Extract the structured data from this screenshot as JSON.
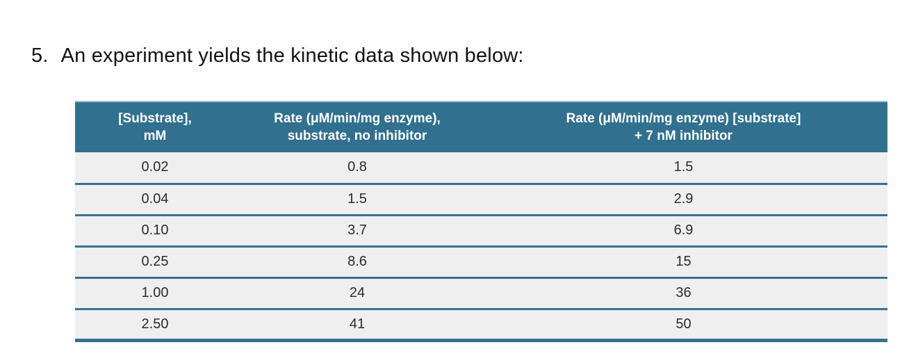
{
  "question": {
    "number": "5.",
    "text": "An experiment yields the kinetic data shown below:"
  },
  "table": {
    "columns": [
      {
        "label_line1": "[Substrate],",
        "label_line2": "mM"
      },
      {
        "label_line1": "Rate (μM/min/mg enzyme),",
        "label_line2": "substrate, no inhibitor"
      },
      {
        "label_line1": "Rate (μM/min/mg enzyme) [substrate]",
        "label_line2": "+ 7 nM inhibitor"
      }
    ],
    "rows": [
      [
        "0.02",
        "0.8",
        "1.5"
      ],
      [
        "0.04",
        "1.5",
        "2.9"
      ],
      [
        "0.10",
        "3.7",
        "6.9"
      ],
      [
        "0.25",
        "8.6",
        "15"
      ],
      [
        "1.00",
        "24",
        "36"
      ],
      [
        "2.50",
        "41",
        "50"
      ]
    ]
  },
  "colors": {
    "header_bg": "#31708F",
    "header_text": "#FFFFFF",
    "row_bg": "#EFEFEF",
    "divider": "#35718F",
    "body_text": "#2B2B2B"
  }
}
